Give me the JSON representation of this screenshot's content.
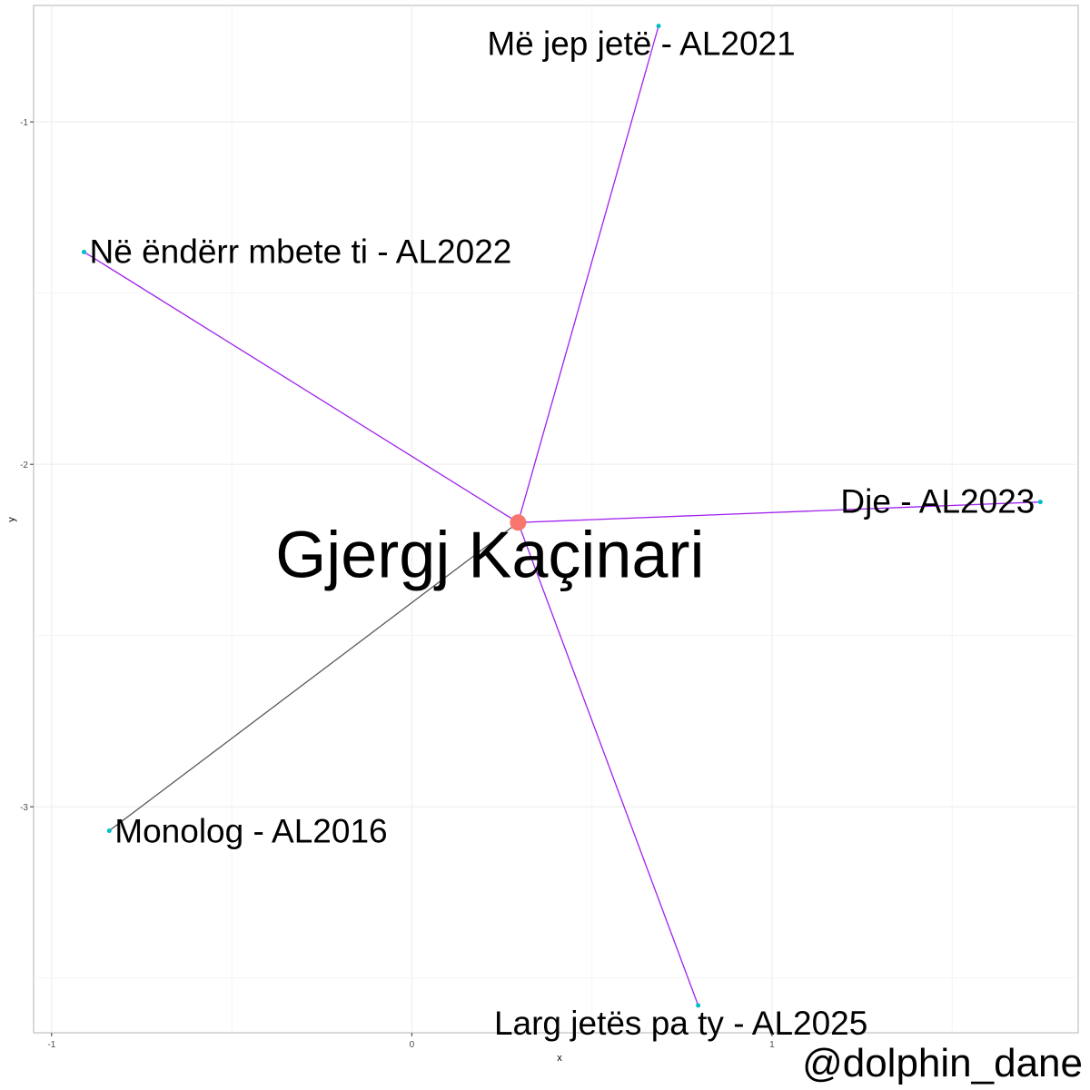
{
  "chart_data": {
    "type": "scatter",
    "subtype": "network",
    "xlabel": "x",
    "ylabel": "y",
    "xlim": [
      -1.05,
      1.85
    ],
    "ylim": [
      -3.66,
      -0.66
    ],
    "x_ticks": [
      -1,
      0,
      1
    ],
    "y_ticks": [
      -1,
      -2,
      -3
    ],
    "x_tick_labels": [
      "-1",
      "0",
      "1"
    ],
    "y_tick_labels": [
      "-1",
      "-2",
      "-3"
    ],
    "grid": true,
    "colors": {
      "purple_edge": "#a020f0",
      "grey_edge": "#595959",
      "leaf_point": "#00bfc4",
      "center_point": "#f8766d"
    },
    "center": {
      "label": "Gjergj Kaçinari",
      "x": 0.295,
      "y": -2.17
    },
    "nodes": [
      {
        "label": "Më jep jetë - AL2021",
        "x": 0.685,
        "y": -0.72,
        "edge": "purple"
      },
      {
        "label": "Në ëndërr mbete ti - AL2022",
        "x": -0.91,
        "y": -1.38,
        "edge": "purple"
      },
      {
        "label": "Dje - AL2023",
        "x": 1.745,
        "y": -2.11,
        "edge": "purple"
      },
      {
        "label": "Monolog - AL2016",
        "x": -0.84,
        "y": -3.07,
        "edge": "grey"
      },
      {
        "label": "Larg jetës pa ty - AL2025",
        "x": 0.795,
        "y": -3.58,
        "edge": "purple"
      }
    ]
  },
  "credit": "@dolphin_dane"
}
